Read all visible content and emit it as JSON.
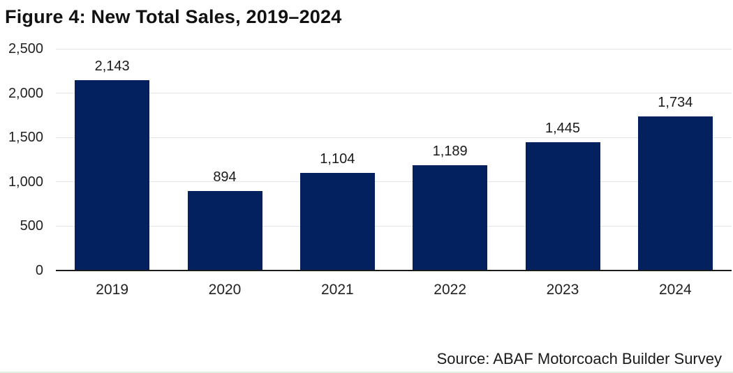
{
  "figure": {
    "title": "Figure 4: New Total Sales, 2019–2024",
    "source": "Source: ABAF Motorcoach Builder Survey"
  },
  "colors": {
    "bar": "#02215e",
    "gridline": "#e5e5e5",
    "axis_line": "#1a1a1a",
    "text": "#1a1a1a",
    "bottom_edge_line": "#e0f1e4"
  },
  "chart_data": {
    "type": "bar",
    "title": "Figure 4: New Total Sales, 2019–2024",
    "source": "Source: ABAF Motorcoach Builder Survey",
    "categories": [
      "2019",
      "2020",
      "2021",
      "2022",
      "2023",
      "2024"
    ],
    "values": [
      2143,
      894,
      1104,
      1189,
      1445,
      1734
    ],
    "value_labels": [
      "2,143",
      "894",
      "1,104",
      "1,189",
      "1,445",
      "1,734"
    ],
    "xlabel": "",
    "ylabel": "",
    "ylim": [
      0,
      2500
    ],
    "yticks": [
      0,
      500,
      1000,
      1500,
      2000,
      2500
    ],
    "ytick_labels": [
      "0",
      "500",
      "1,000",
      "1,500",
      "2,000",
      "2,500"
    ],
    "grid": true,
    "legend": false,
    "bar_color": "#02215e"
  }
}
